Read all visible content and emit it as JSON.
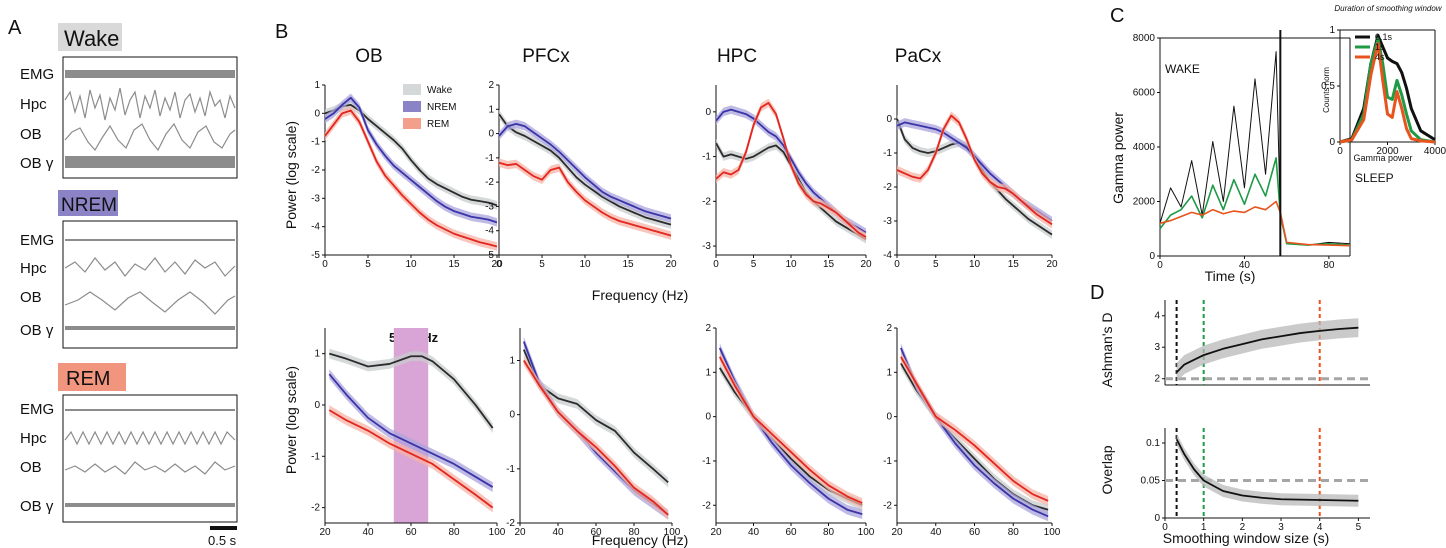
{
  "panelA": {
    "letter": "A",
    "states": [
      {
        "name": "Wake",
        "color": "#d9d9d9",
        "rows": [
          "EMG",
          "Hpc",
          "OB",
          "OB γ"
        ]
      },
      {
        "name": "NREM",
        "color": "#8a84c6",
        "rows": [
          "EMG",
          "Hpc",
          "OB",
          "OB γ"
        ]
      },
      {
        "name": "REM",
        "color": "#f2957f",
        "rows": [
          "EMG",
          "Hpc",
          "OB",
          "OB γ"
        ]
      }
    ],
    "scalebar": "0.5 s"
  },
  "panelB": {
    "letter": "B",
    "titles": [
      "OB",
      "PFCx",
      "HPC",
      "PaCx"
    ],
    "ylabel": "Power (log scale)",
    "xlabel": "Frequency (Hz)",
    "band_label": "50-70Hz",
    "legend": [
      "Wake",
      "NREM",
      "REM"
    ],
    "colors": {
      "Wake": "#2b2b2b",
      "NREM": "#3b34a8",
      "REM": "#e3261e",
      "band": "#d9a4d6"
    }
  },
  "chart_data": [
    {
      "type": "line",
      "title": "OB",
      "xlabel": "",
      "ylabel": "Power (log scale)",
      "xlim": [
        0,
        20
      ],
      "ylim": [
        -5,
        1
      ],
      "x": [
        0,
        1,
        2,
        3,
        4,
        5,
        6,
        7,
        8,
        9,
        10,
        11,
        12,
        13,
        14,
        15,
        16,
        17,
        18,
        19,
        20
      ],
      "series": [
        {
          "name": "Wake",
          "values": [
            0,
            0.1,
            0.25,
            0.3,
            0.1,
            -0.2,
            -0.45,
            -0.7,
            -0.95,
            -1.25,
            -1.65,
            -2,
            -2.3,
            -2.5,
            -2.65,
            -2.8,
            -2.95,
            -3.05,
            -3.1,
            -3.15,
            -3.25
          ]
        },
        {
          "name": "NREM",
          "values": [
            -0.2,
            0,
            0.3,
            0.55,
            0.2,
            -0.6,
            -1.1,
            -1.5,
            -1.85,
            -2.1,
            -2.35,
            -2.6,
            -2.85,
            -3.1,
            -3.3,
            -3.45,
            -3.55,
            -3.65,
            -3.7,
            -3.75,
            -3.85
          ]
        },
        {
          "name": "REM",
          "values": [
            -0.8,
            -0.4,
            0,
            0.1,
            -0.3,
            -1,
            -1.7,
            -2.2,
            -2.55,
            -2.9,
            -3.2,
            -3.5,
            -3.75,
            -3.95,
            -4.1,
            -4.25,
            -4.35,
            -4.45,
            -4.55,
            -4.62,
            -4.7
          ]
        }
      ]
    },
    {
      "type": "line",
      "title": "PFCx",
      "xlabel": "",
      "ylabel": "",
      "xlim": [
        0,
        20
      ],
      "ylim": [
        -5,
        2
      ],
      "x": [
        0,
        1,
        2,
        3,
        4,
        5,
        6,
        7,
        8,
        9,
        10,
        11,
        12,
        13,
        14,
        15,
        16,
        17,
        18,
        19,
        20
      ],
      "series": [
        {
          "name": "Wake",
          "values": [
            0.8,
            0.3,
            0.05,
            -0.1,
            -0.3,
            -0.5,
            -0.7,
            -1,
            -1.4,
            -1.8,
            -2.1,
            -2.35,
            -2.6,
            -2.8,
            -3,
            -3.15,
            -3.3,
            -3.45,
            -3.55,
            -3.65,
            -3.75
          ]
        },
        {
          "name": "NREM",
          "values": [
            -0.1,
            0.3,
            0.4,
            0.3,
            0.05,
            -0.2,
            -0.45,
            -0.75,
            -1.1,
            -1.45,
            -1.8,
            -2.1,
            -2.4,
            -2.6,
            -2.75,
            -2.9,
            -3.05,
            -3.2,
            -3.3,
            -3.4,
            -3.5
          ]
        },
        {
          "name": "REM",
          "values": [
            -1.2,
            -1.3,
            -1.25,
            -1.5,
            -1.75,
            -1.9,
            -1.5,
            -1.4,
            -2,
            -2.4,
            -2.75,
            -3,
            -3.25,
            -3.45,
            -3.6,
            -3.7,
            -3.8,
            -3.9,
            -4,
            -4.1,
            -4.2
          ]
        }
      ]
    },
    {
      "type": "line",
      "title": "HPC",
      "xlabel": "",
      "ylabel": "",
      "xlim": [
        0,
        20
      ],
      "ylim": [
        -3.2,
        0.6
      ],
      "x": [
        0,
        1,
        2,
        3,
        4,
        5,
        6,
        7,
        8,
        9,
        10,
        11,
        12,
        13,
        14,
        15,
        16,
        17,
        18,
        19,
        20
      ],
      "series": [
        {
          "name": "Wake",
          "values": [
            -0.7,
            -1,
            -0.95,
            -1,
            -1.05,
            -1,
            -0.9,
            -0.8,
            -0.75,
            -0.9,
            -1.2,
            -1.5,
            -1.8,
            -2,
            -2.15,
            -2.3,
            -2.45,
            -2.55,
            -2.65,
            -2.75,
            -2.85
          ]
        },
        {
          "name": "NREM",
          "values": [
            -0.2,
            0,
            0.05,
            0,
            -0.05,
            -0.15,
            -0.3,
            -0.45,
            -0.55,
            -0.75,
            -1.05,
            -1.35,
            -1.6,
            -1.8,
            -1.95,
            -2.1,
            -2.25,
            -2.4,
            -2.5,
            -2.6,
            -2.7
          ]
        },
        {
          "name": "REM",
          "values": [
            -1.5,
            -1.35,
            -1.4,
            -1.3,
            -0.9,
            -0.3,
            0.1,
            0.2,
            -0.05,
            -0.6,
            -1.2,
            -1.6,
            -1.85,
            -2,
            -2.05,
            -2.15,
            -2.25,
            -2.4,
            -2.55,
            -2.7,
            -2.8
          ]
        }
      ]
    },
    {
      "type": "line",
      "title": "PaCx",
      "xlabel": "",
      "ylabel": "",
      "xlim": [
        0,
        20
      ],
      "ylim": [
        -4,
        1
      ],
      "x": [
        0,
        1,
        2,
        3,
        4,
        5,
        6,
        7,
        8,
        9,
        10,
        11,
        12,
        13,
        14,
        15,
        16,
        17,
        18,
        19,
        20
      ],
      "series": [
        {
          "name": "Wake",
          "values": [
            0,
            -0.6,
            -0.85,
            -0.95,
            -1,
            -0.95,
            -0.85,
            -0.75,
            -0.7,
            -0.8,
            -1.1,
            -1.5,
            -1.85,
            -2.1,
            -2.35,
            -2.55,
            -2.75,
            -2.95,
            -3.1,
            -3.25,
            -3.4
          ]
        },
        {
          "name": "NREM",
          "values": [
            -0.2,
            -0.1,
            -0.15,
            -0.2,
            -0.25,
            -0.3,
            -0.4,
            -0.55,
            -0.7,
            -0.85,
            -1.1,
            -1.35,
            -1.6,
            -1.8,
            -2,
            -2.2,
            -2.4,
            -2.55,
            -2.7,
            -2.85,
            -3
          ]
        },
        {
          "name": "REM",
          "values": [
            -1.5,
            -1.6,
            -1.7,
            -1.75,
            -1.5,
            -1,
            -0.3,
            0.1,
            -0.1,
            -0.6,
            -1.2,
            -1.6,
            -1.85,
            -2,
            -2.05,
            -2.2,
            -2.4,
            -2.6,
            -2.8,
            -2.95,
            -3.1
          ]
        }
      ]
    },
    {
      "type": "line",
      "title": "",
      "xlabel": "Frequency (Hz)",
      "ylabel": "Power (log scale)",
      "xlim": [
        20,
        100
      ],
      "ylim": [
        -2.3,
        1.5
      ],
      "x": [
        22,
        30,
        40,
        50,
        60,
        65,
        70,
        80,
        90,
        98
      ],
      "series": [
        {
          "name": "Wake",
          "values": [
            1,
            0.9,
            0.75,
            0.8,
            0.95,
            0.95,
            0.85,
            0.5,
            0,
            -0.45
          ]
        },
        {
          "name": "NREM",
          "values": [
            0.6,
            0.2,
            -0.25,
            -0.55,
            -0.75,
            -0.85,
            -0.95,
            -1.15,
            -1.4,
            -1.6
          ]
        },
        {
          "name": "REM",
          "values": [
            -0.1,
            -0.3,
            -0.5,
            -0.75,
            -0.95,
            -1.05,
            -1.15,
            -1.45,
            -1.75,
            -2
          ]
        }
      ]
    },
    {
      "type": "line",
      "title": "",
      "xlabel": "Frequency (Hz)",
      "ylabel": "",
      "xlim": [
        20,
        100
      ],
      "ylim": [
        -2,
        1.6
      ],
      "x": [
        22,
        30,
        40,
        50,
        60,
        70,
        80,
        90,
        98
      ],
      "series": [
        {
          "name": "Wake",
          "values": [
            1.2,
            0.55,
            0.3,
            0.2,
            -0.1,
            -0.3,
            -0.7,
            -1,
            -1.25
          ]
        },
        {
          "name": "NREM",
          "values": [
            1.35,
            0.6,
            0.05,
            -0.3,
            -0.7,
            -1.05,
            -1.4,
            -1.65,
            -1.85
          ]
        },
        {
          "name": "REM",
          "values": [
            1,
            0.55,
            0.05,
            -0.3,
            -0.6,
            -0.95,
            -1.35,
            -1.6,
            -1.85
          ]
        }
      ]
    },
    {
      "type": "line",
      "title": "",
      "xlabel": "Frequency (Hz)",
      "ylabel": "",
      "xlim": [
        20,
        100
      ],
      "ylim": [
        -2.4,
        2
      ],
      "x": [
        22,
        30,
        40,
        50,
        60,
        70,
        80,
        90,
        98
      ],
      "series": [
        {
          "name": "Wake",
          "values": [
            1.1,
            0.55,
            0,
            -0.5,
            -0.95,
            -1.35,
            -1.65,
            -1.85,
            -2
          ]
        },
        {
          "name": "NREM",
          "values": [
            1.55,
            0.8,
            0,
            -0.6,
            -1.1,
            -1.5,
            -1.85,
            -2.1,
            -2.2
          ]
        },
        {
          "name": "REM",
          "values": [
            1.35,
            0.7,
            0,
            -0.4,
            -0.8,
            -1.2,
            -1.55,
            -1.8,
            -1.95
          ]
        }
      ]
    },
    {
      "type": "line",
      "title": "",
      "xlabel": "Frequency (Hz)",
      "ylabel": "",
      "xlim": [
        20,
        100
      ],
      "ylim": [
        -2.4,
        2
      ],
      "x": [
        22,
        30,
        40,
        50,
        60,
        70,
        80,
        90,
        98
      ],
      "series": [
        {
          "name": "Wake",
          "values": [
            1.2,
            0.6,
            0,
            -0.5,
            -0.95,
            -1.4,
            -1.75,
            -2,
            -2.1
          ]
        },
        {
          "name": "NREM",
          "values": [
            1.55,
            0.7,
            0,
            -0.6,
            -1.1,
            -1.5,
            -1.85,
            -2.1,
            -2.25
          ]
        },
        {
          "name": "REM",
          "values": [
            1.35,
            0.75,
            0,
            -0.3,
            -0.65,
            -1.05,
            -1.45,
            -1.75,
            -1.9
          ]
        }
      ]
    },
    {
      "type": "line",
      "title": "",
      "xlabel": "Time (s)",
      "ylabel": "Gamma power",
      "xlim": [
        0,
        90
      ],
      "ylim": [
        0,
        8000
      ],
      "annotations": [
        "WAKE",
        "SLEEP"
      ],
      "x": [
        0,
        5,
        10,
        15,
        20,
        25,
        30,
        35,
        40,
        45,
        50,
        55,
        57,
        60,
        70,
        80,
        90
      ],
      "series": [
        {
          "name": "0.1s",
          "values": [
            1200,
            2500,
            1800,
            3500,
            1500,
            4200,
            2000,
            5500,
            2500,
            6500,
            3000,
            7500,
            1500,
            500,
            400,
            500,
            450
          ]
        },
        {
          "name": "1s",
          "values": [
            1000,
            1500,
            1700,
            2200,
            1400,
            2600,
            1700,
            2800,
            1900,
            3000,
            2200,
            3600,
            1500,
            450,
            400,
            450,
            400
          ]
        },
        {
          "name": "4s",
          "values": [
            1200,
            1300,
            1450,
            1600,
            1500,
            1700,
            1550,
            1650,
            1600,
            1800,
            1700,
            2000,
            1600,
            500,
            420,
            400,
            380
          ]
        }
      ]
    },
    {
      "type": "line",
      "title": "",
      "xlabel": "Gamma power",
      "ylabel": "Counts norm",
      "xlim": [
        0,
        4000
      ],
      "ylim": [
        0,
        1
      ],
      "x": [
        0,
        500,
        1000,
        1300,
        1600,
        1800,
        2000,
        2200,
        2400,
        2600,
        2800,
        3000,
        3400,
        4000
      ],
      "series": [
        {
          "name": "0.1s",
          "values": [
            0,
            0.03,
            0.3,
            0.7,
            0.95,
            0.85,
            0.75,
            0.72,
            0.7,
            0.62,
            0.48,
            0.3,
            0.1,
            0.02
          ]
        },
        {
          "name": "1s",
          "values": [
            0,
            0.02,
            0.25,
            0.7,
            0.92,
            0.7,
            0.4,
            0.38,
            0.55,
            0.42,
            0.25,
            0.1,
            0.02,
            0
          ]
        },
        {
          "name": "4s",
          "values": [
            0,
            0.02,
            0.2,
            0.6,
            0.88,
            0.55,
            0.25,
            0.22,
            0.45,
            0.3,
            0.12,
            0.03,
            0.01,
            0
          ]
        }
      ]
    },
    {
      "type": "line",
      "title": "",
      "xlabel": "",
      "ylabel": "Ashman's D",
      "xlim": [
        0,
        5.3
      ],
      "ylim": [
        1.8,
        4.5
      ],
      "x": [
        0.3,
        0.5,
        1,
        1.5,
        2,
        2.5,
        3,
        3.5,
        4,
        4.5,
        5
      ],
      "series": [
        {
          "name": "",
          "values": [
            2.2,
            2.45,
            2.75,
            2.95,
            3.1,
            3.25,
            3.35,
            3.45,
            3.52,
            3.58,
            3.62
          ]
        }
      ],
      "reference_y": 2.0,
      "vlines": [
        0.3,
        1,
        4
      ]
    },
    {
      "type": "line",
      "title": "",
      "xlabel": "Smoothing window size (s)",
      "ylabel": "Overlap",
      "xlim": [
        0,
        5.3
      ],
      "ylim": [
        0,
        0.12
      ],
      "x": [
        0.3,
        0.5,
        0.75,
        1,
        1.5,
        2,
        2.5,
        3,
        4,
        5
      ],
      "series": [
        {
          "name": "",
          "values": [
            0.105,
            0.085,
            0.065,
            0.05,
            0.036,
            0.03,
            0.027,
            0.025,
            0.024,
            0.023
          ]
        }
      ],
      "reference_y": 0.05,
      "vlines": [
        0.3,
        1,
        4
      ]
    }
  ],
  "panelC": {
    "letter": "C",
    "inset_title": "Duration of smoothing window",
    "legend": [
      "0.1s",
      "1s",
      "4s"
    ],
    "colors": {
      "0.1s": "#111111",
      "1s": "#1f9a45",
      "4s": "#e8541e"
    }
  },
  "panelD": {
    "letter": "D",
    "vline_colors": [
      "#111111",
      "#1f9a45",
      "#e8541e"
    ]
  }
}
